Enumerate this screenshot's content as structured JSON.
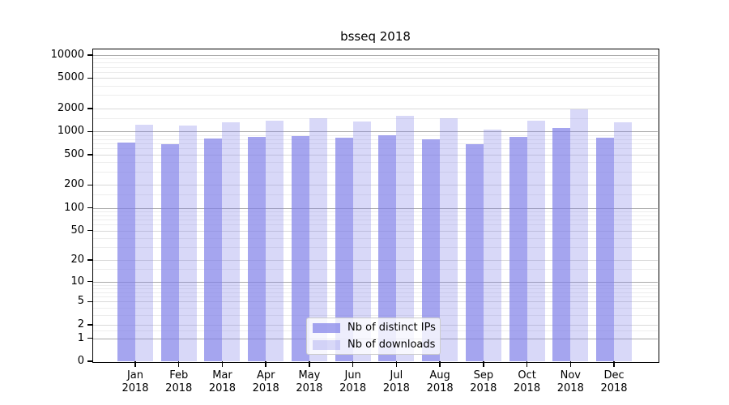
{
  "chart_data": {
    "type": "bar",
    "title": "bsseq 2018",
    "categories": [
      "Jan",
      "Feb",
      "Mar",
      "Apr",
      "May",
      "Jun",
      "Jul",
      "Aug",
      "Sep",
      "Oct",
      "Nov",
      "Dec"
    ],
    "x_tick_second_line": "2018",
    "series": [
      {
        "name": "Nb of distinct IPs",
        "color": "rgba(127,127,232,0.7)",
        "values": [
          715,
          690,
          820,
          860,
          875,
          825,
          890,
          800,
          690,
          855,
          1110,
          835
        ]
      },
      {
        "name": "Nb of downloads",
        "color": "rgba(127,127,232,0.3)",
        "values": [
          1225,
          1195,
          1330,
          1395,
          1500,
          1365,
          1600,
          1480,
          1060,
          1385,
          1930,
          1310
        ]
      }
    ],
    "y_ticks": [
      0,
      1,
      2,
      5,
      10,
      20,
      50,
      100,
      200,
      500,
      1000,
      2000,
      5000,
      10000
    ],
    "y_scale": "log10(value+1)",
    "ylim": [
      0,
      12000
    ],
    "grid": "on",
    "legend_position": "lower center"
  },
  "colors": {
    "bar_base": "#7f7fe8",
    "decade_grid": "#ababab",
    "tick_grid": "#d9d9d9",
    "minor_grid": "#ededed",
    "axis": "#000000",
    "legend_border": "#cccccc",
    "background": "#ffffff"
  }
}
